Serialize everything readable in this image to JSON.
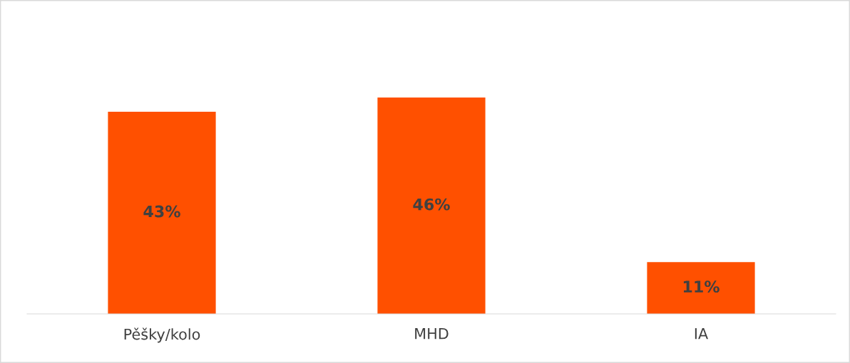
{
  "chart_data": {
    "type": "bar",
    "categories": [
      "Pěšky/kolo",
      "MHD",
      "IA"
    ],
    "values": [
      43,
      46,
      11
    ],
    "value_labels": [
      "43%",
      "46%",
      "11%"
    ],
    "color": "#ff5000",
    "grid": false,
    "legend": false
  }
}
